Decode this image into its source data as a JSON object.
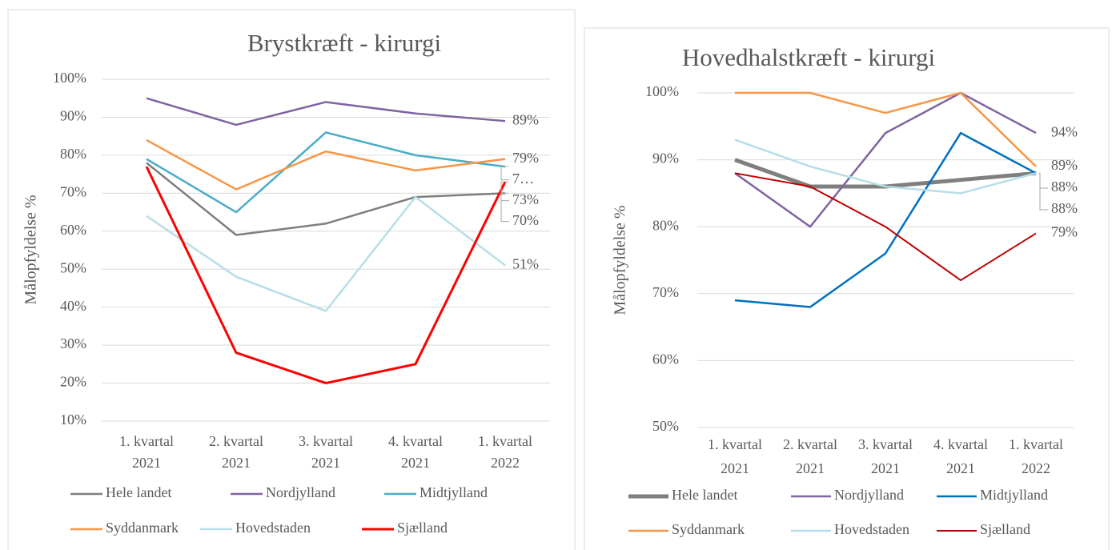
{
  "chart_data": [
    {
      "type": "line",
      "title": "Brystkræft - kirurgi",
      "y_label": "Målopfyldelse %",
      "categories": [
        "1. kvartal 2021",
        "2. kvartal 2021",
        "3. kvartal 2021",
        "4. kvartal 2021",
        "1. kvartal 2022"
      ],
      "ylim": [
        10,
        100
      ],
      "yticks": [
        {
          "value": 10,
          "label": "10%"
        },
        {
          "value": 20,
          "label": "20%"
        },
        {
          "value": 30,
          "label": "30%"
        },
        {
          "value": 40,
          "label": "40%"
        },
        {
          "value": 50,
          "label": "50%"
        },
        {
          "value": 60,
          "label": "60%"
        },
        {
          "value": 70,
          "label": "70%"
        },
        {
          "value": 80,
          "label": "80%"
        },
        {
          "value": 90,
          "label": "90%"
        },
        {
          "value": 100,
          "label": "100%"
        }
      ],
      "grid": true,
      "legend": "bottom",
      "series": [
        {
          "name": "Hele landet",
          "color": "#7f7f7f",
          "line_width": 2.5,
          "values": [
            78,
            59,
            62,
            69,
            70
          ],
          "value_labels": [
            null,
            null,
            null,
            null,
            "70%"
          ]
        },
        {
          "name": "Nordjylland",
          "color": "#8064a2",
          "line_width": 2.5,
          "values": [
            95,
            88,
            94,
            91,
            89
          ],
          "value_labels": [
            null,
            null,
            null,
            null,
            "89%"
          ]
        },
        {
          "name": "Midtjylland",
          "color": "#4bacc6",
          "line_width": 2.5,
          "values": [
            79,
            65,
            86,
            80,
            77
          ],
          "value_labels": [
            null,
            null,
            null,
            null,
            "7…"
          ]
        },
        {
          "name": "Syddanmark",
          "color": "#f79646",
          "line_width": 2.5,
          "values": [
            84,
            71,
            81,
            76,
            79
          ],
          "value_labels": [
            null,
            null,
            null,
            null,
            "79%"
          ]
        },
        {
          "name": "Hovedstaden",
          "color": "#b7dee8",
          "line_width": 2.5,
          "values": [
            64,
            48,
            39,
            69,
            51
          ],
          "value_labels": [
            null,
            null,
            null,
            null,
            "51%"
          ]
        },
        {
          "name": "Sjælland",
          "color": "#ff0000",
          "line_width": 3,
          "values": [
            77,
            28,
            20,
            25,
            73
          ],
          "value_labels": [
            null,
            null,
            null,
            null,
            "73%"
          ]
        }
      ]
    },
    {
      "type": "line",
      "title": "Hovedhalstkræft - kirurgi",
      "y_label": "Målopfyldelse %",
      "categories": [
        "1. kvartal 2021",
        "2. kvartal 2021",
        "3. kvartal 2021",
        "4. kvartal 2021",
        "1. kvartal 2022"
      ],
      "ylim": [
        50,
        100
      ],
      "yticks": [
        {
          "value": 50,
          "label": "50%"
        },
        {
          "value": 60,
          "label": "60%"
        },
        {
          "value": 70,
          "label": "70%"
        },
        {
          "value": 80,
          "label": "80%"
        },
        {
          "value": 90,
          "label": "90%"
        },
        {
          "value": 100,
          "label": "100%"
        }
      ],
      "grid": true,
      "legend": "bottom",
      "series": [
        {
          "name": "Hele landet",
          "color": "#7f7f7f",
          "line_width": 5,
          "values": [
            90,
            86,
            86,
            87,
            88
          ]
        },
        {
          "name": "Nordjylland",
          "color": "#8064a2",
          "line_width": 2.5,
          "values": [
            88,
            80,
            94,
            100,
            94
          ],
          "value_labels": [
            null,
            null,
            null,
            null,
            "94%"
          ]
        },
        {
          "name": "Midtjylland",
          "color": "#0070c0",
          "line_width": 2.5,
          "values": [
            69,
            68,
            76,
            94,
            88
          ],
          "value_labels": [
            null,
            null,
            null,
            null,
            "88%"
          ]
        },
        {
          "name": "Syddanmark",
          "color": "#f79646",
          "line_width": 2.5,
          "values": [
            100,
            100,
            97,
            100,
            89
          ],
          "value_labels": [
            null,
            null,
            null,
            null,
            "89%"
          ]
        },
        {
          "name": "Hovedstaden",
          "color": "#b7dee8",
          "line_width": 2.5,
          "values": [
            93,
            89,
            86,
            85,
            88
          ],
          "value_labels": [
            null,
            null,
            null,
            null,
            "88%"
          ]
        },
        {
          "name": "Sjælland",
          "color": "#c00000",
          "line_width": 2,
          "values": [
            88,
            86,
            80,
            72,
            79
          ],
          "value_labels": [
            null,
            null,
            null,
            null,
            "79%"
          ]
        }
      ]
    }
  ]
}
